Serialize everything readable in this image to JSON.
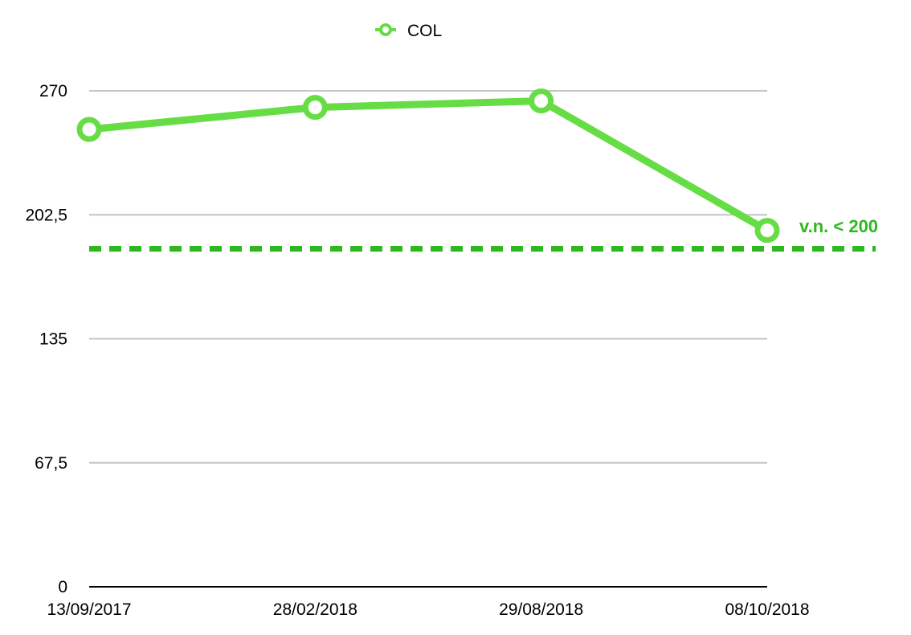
{
  "chart_data": {
    "type": "line",
    "categories": [
      "13/09/2017",
      "28/02/2018",
      "29/08/2018",
      "08/10/2018"
    ],
    "series": [
      {
        "name": "COL",
        "values": [
          249,
          261,
          264.5,
          194
        ],
        "color": "#66dd44"
      }
    ],
    "ylim": [
      0,
      270
    ],
    "yticks": [
      0,
      67.5,
      135,
      202.5,
      270
    ],
    "ytick_labels": [
      "0",
      "67,5",
      "135",
      "202,5",
      "270"
    ],
    "grid": true,
    "legend": {
      "position": "top-center",
      "marker": "hollow-circle"
    },
    "reference_line": {
      "value": 184,
      "style": "dashed",
      "color": "#2db81f",
      "label": "v.n. < 200"
    }
  }
}
